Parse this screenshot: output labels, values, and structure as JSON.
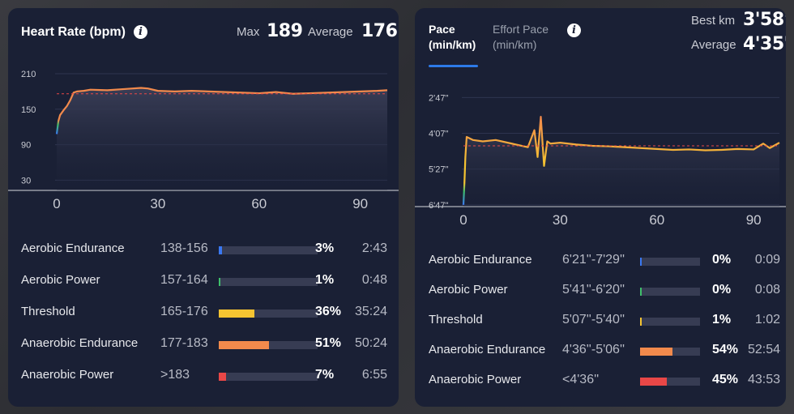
{
  "heart_rate": {
    "title": "Heart Rate (bpm)",
    "max_label": "Max",
    "max_value": "189",
    "avg_label": "Average",
    "avg_value": "176",
    "y_ticks": [
      "210",
      "150",
      "90",
      "30"
    ],
    "x_ticks": [
      "0",
      "30",
      "60",
      "90"
    ],
    "zones": [
      {
        "name": "Aerobic Endurance",
        "range": "138-156",
        "percent": "3%",
        "fraction": 0.03,
        "time": "2:43",
        "color": "#3a78f2"
      },
      {
        "name": "Aerobic Power",
        "range": "157-164",
        "percent": "1%",
        "fraction": 0.01,
        "time": "0:48",
        "color": "#3fbf6b"
      },
      {
        "name": "Threshold",
        "range": "165-176",
        "percent": "36%",
        "fraction": 0.36,
        "time": "35:24",
        "color": "#f5c431"
      },
      {
        "name": "Anaerobic Endurance",
        "range": "177-183",
        "percent": "51%",
        "fraction": 0.51,
        "time": "50:24",
        "color": "#f28a4c"
      },
      {
        "name": "Anaerobic Power",
        "range": ">183",
        "percent": "7%",
        "fraction": 0.07,
        "time": "6:55",
        "color": "#e94747"
      }
    ]
  },
  "pace": {
    "tab_active": "Pace\n(min/km)",
    "tab_active_line1": "Pace",
    "tab_active_line2": "(min/km)",
    "tab_inactive_line1": "Effort Pace",
    "tab_inactive_line2": "(min/km)",
    "best_label": "Best km",
    "best_value": "3'58''",
    "avg_label": "Average",
    "avg_value": "4'35''",
    "y_ticks": [
      "2'47''",
      "4'07''",
      "5'27''",
      "6'47''"
    ],
    "x_ticks": [
      "0",
      "30",
      "60",
      "90"
    ],
    "zones": [
      {
        "name": "Aerobic Endurance",
        "range": "6'21''-7'29''",
        "percent": "0%",
        "fraction": 0.0,
        "time": "0:09",
        "color": "#3a78f2"
      },
      {
        "name": "Aerobic Power",
        "range": "5'41''-6'20''",
        "percent": "0%",
        "fraction": 0.0,
        "time": "0:08",
        "color": "#3fbf6b"
      },
      {
        "name": "Threshold",
        "range": "5'07''-5'40''",
        "percent": "1%",
        "fraction": 0.01,
        "time": "1:02",
        "color": "#f5c431"
      },
      {
        "name": "Anaerobic Endurance",
        "range": "4'36''-5'06''",
        "percent": "54%",
        "fraction": 0.54,
        "time": "52:54",
        "color": "#f28a4c"
      },
      {
        "name": "Anaerobic Power",
        "range": "<4'36''",
        "percent": "45%",
        "fraction": 0.45,
        "time": "43:53",
        "color": "#e94747"
      }
    ]
  },
  "chart_data": [
    {
      "type": "line",
      "ylabel": "Heart Rate (bpm)",
      "x_ticks": [
        0,
        30,
        60,
        90
      ],
      "y_ticks": [
        210,
        150,
        90,
        30
      ],
      "ylim": [
        10,
        225
      ],
      "xlim": [
        0,
        98
      ],
      "average_line": 176,
      "x": [
        0,
        0.5,
        1,
        2,
        3,
        4,
        5,
        6,
        8,
        10,
        15,
        20,
        25,
        27,
        30,
        35,
        40,
        45,
        50,
        55,
        60,
        65,
        70,
        75,
        80,
        85,
        90,
        95,
        98
      ],
      "y": [
        108,
        130,
        140,
        148,
        155,
        165,
        178,
        180,
        181,
        183,
        182,
        184,
        186,
        185,
        181,
        180,
        181,
        180,
        179,
        178,
        177,
        179,
        176,
        177,
        178,
        179,
        180,
        181,
        182
      ]
    },
    {
      "type": "line",
      "ylabel": "Pace (min/km)",
      "x_ticks": [
        0,
        30,
        60,
        90
      ],
      "y_ticks": [
        "2'47''",
        "4'07''",
        "5'27''",
        "6'47''"
      ],
      "ylim_seconds": [
        130,
        420
      ],
      "y_reversed": true,
      "xlim": [
        0,
        98
      ],
      "average_line_seconds": 275,
      "x": [
        0,
        0.3,
        0.6,
        1,
        3,
        6,
        10,
        15,
        20,
        22,
        23,
        24,
        25,
        26,
        27,
        30,
        35,
        40,
        45,
        50,
        55,
        60,
        65,
        70,
        75,
        80,
        85,
        90,
        93,
        95,
        98
      ],
      "y": [
        407,
        360,
        300,
        255,
        262,
        265,
        262,
        270,
        278,
        240,
        300,
        210,
        320,
        265,
        270,
        268,
        272,
        275,
        276,
        278,
        280,
        282,
        284,
        283,
        285,
        284,
        282,
        283,
        270,
        280,
        268
      ]
    }
  ]
}
